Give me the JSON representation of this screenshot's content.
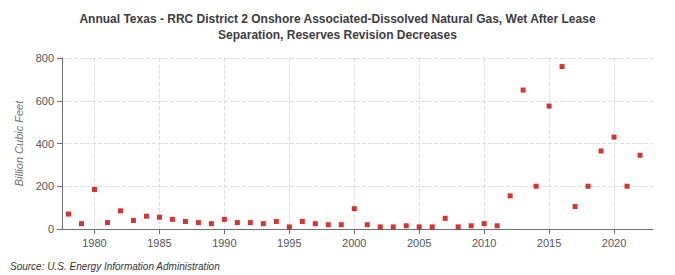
{
  "chart_data": {
    "type": "scatter",
    "title": "Annual Texas - RRC District 2 Onshore Associated-Dissolved Natural Gas, Wet After Lease\nSeparation, Reserves Revision Decreases",
    "ylabel": "Billion Cubic Feet",
    "annotations": [
      "Source: U.S. Energy Information Administration"
    ],
    "x": [
      1978,
      1979,
      1980,
      1981,
      1982,
      1983,
      1984,
      1985,
      1986,
      1987,
      1988,
      1989,
      1990,
      1991,
      1992,
      1993,
      1994,
      1995,
      1996,
      1997,
      1998,
      1999,
      2000,
      2001,
      2002,
      2003,
      2004,
      2005,
      2006,
      2007,
      2008,
      2009,
      2010,
      2011,
      2012,
      2013,
      2014,
      2015,
      2016,
      2017,
      2018,
      2019,
      2020,
      2021,
      2022
    ],
    "values": [
      70,
      25,
      185,
      30,
      85,
      40,
      60,
      55,
      45,
      35,
      30,
      25,
      45,
      30,
      30,
      25,
      35,
      10,
      35,
      25,
      20,
      20,
      95,
      20,
      10,
      10,
      15,
      10,
      10,
      50,
      10,
      15,
      25,
      15,
      155,
      650,
      200,
      575,
      760,
      105,
      200,
      365,
      430,
      200,
      345
    ],
    "color": "#cc0000",
    "marker": "square",
    "xlim": [
      1977.5,
      2023
    ],
    "xticks": [
      1980,
      1985,
      1990,
      1995,
      2000,
      2005,
      2010,
      2015,
      2020
    ],
    "ylim": [
      0,
      800
    ],
    "yticks": [
      0,
      200,
      400,
      600,
      800
    ],
    "grid": true
  }
}
